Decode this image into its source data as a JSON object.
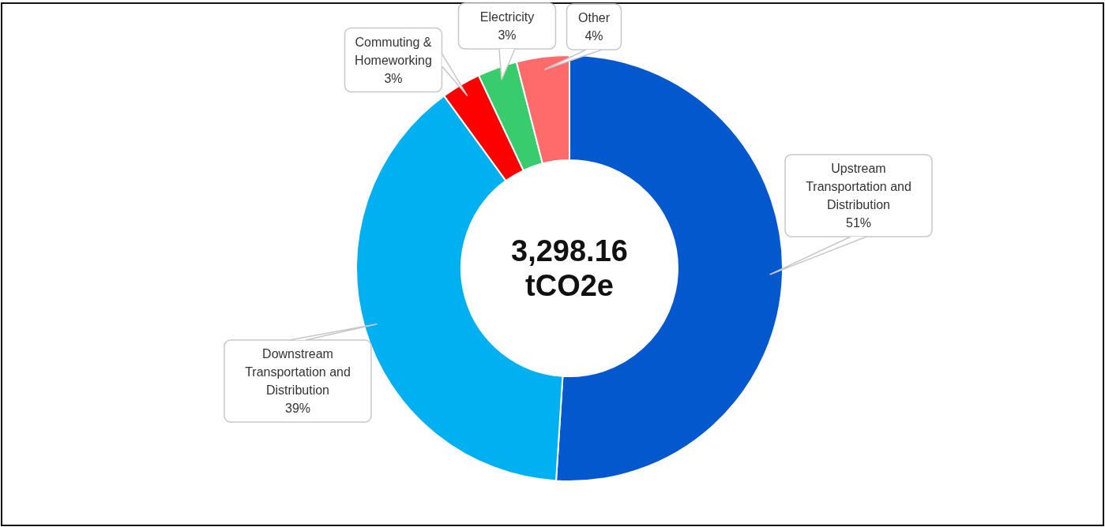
{
  "chart_data": {
    "type": "donut",
    "categories": [
      "Upstream Transportation and Distribution",
      "Downstream Transportation and Distribution",
      "Commuting & Homeworking",
      "Electricity",
      "Other"
    ],
    "values": [
      51,
      39,
      3,
      3,
      4
    ],
    "colors": [
      "#0358cd",
      "#00b0f0",
      "#ff0000",
      "#38cc6d",
      "#ff6b6b"
    ],
    "value_labels": [
      "51%",
      "39%",
      "3%",
      "3%",
      "4%"
    ],
    "annotations": [
      "3,298.16 tCO2e"
    ]
  }
}
